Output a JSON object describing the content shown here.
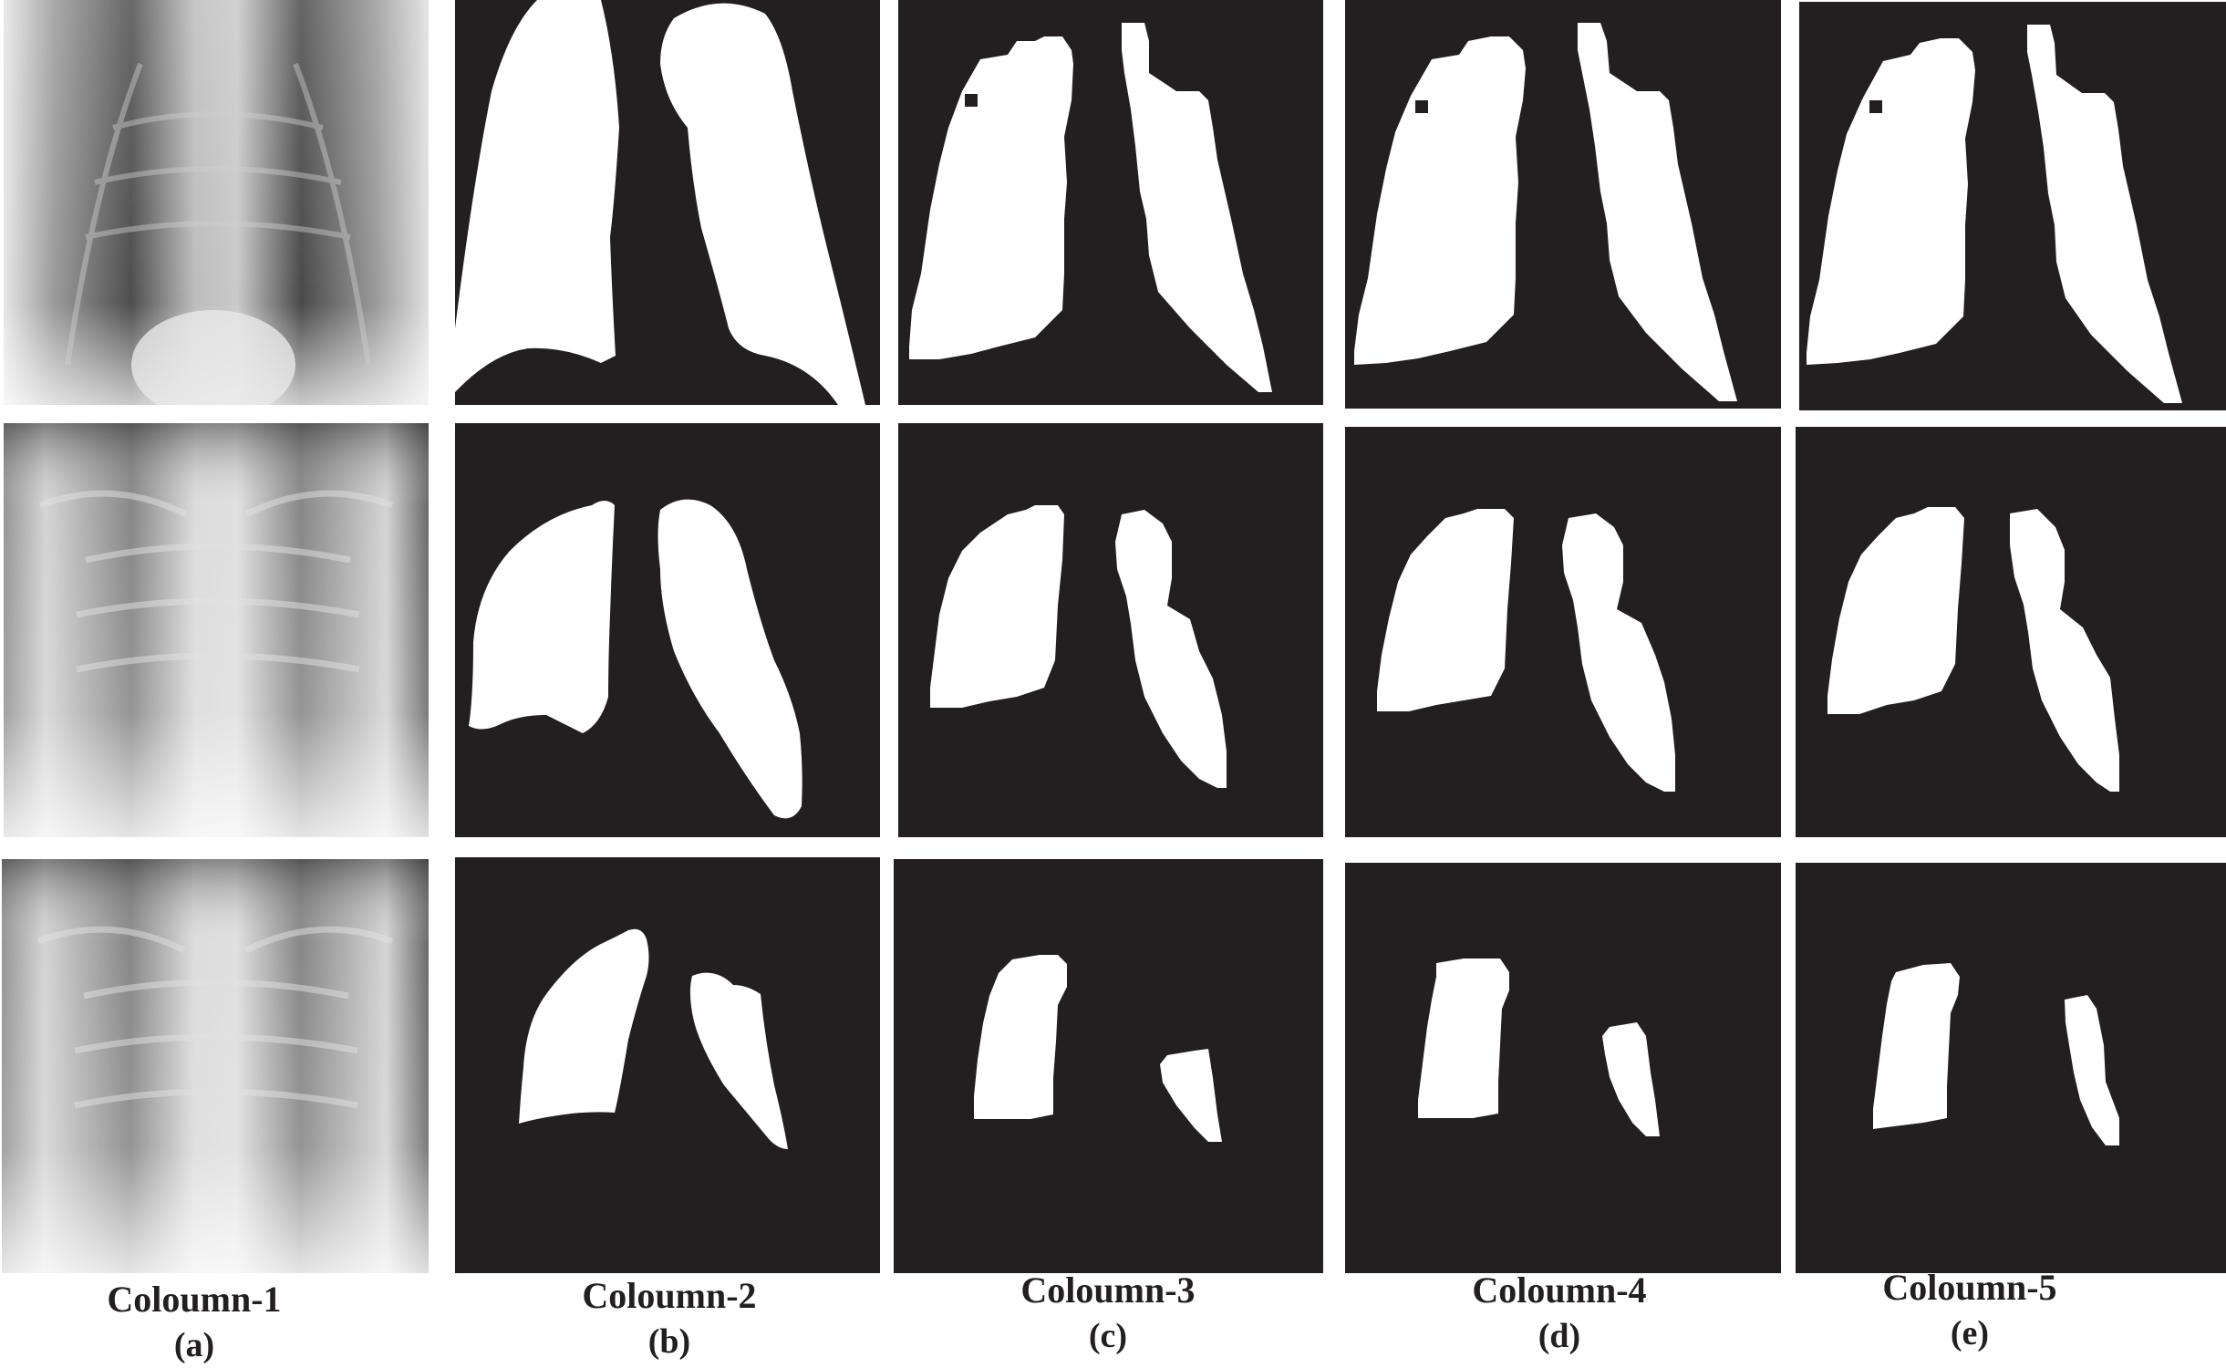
{
  "figure": {
    "panel_background": "#231f20",
    "mask_color": "#ffffff",
    "xray_tone": "#8c8c8c",
    "columns": [
      {
        "title": "Coloumn-1",
        "sublabel": "(a)",
        "content": "chest-x-ray"
      },
      {
        "title": "Coloumn-2",
        "sublabel": "(b)",
        "content": "ground-truth-lung-mask"
      },
      {
        "title": "Coloumn-3",
        "sublabel": "(c)",
        "content": "predicted-lung-mask"
      },
      {
        "title": "Coloumn-4",
        "sublabel": "(d)",
        "content": "predicted-lung-mask"
      },
      {
        "title": "Coloumn-5",
        "sublabel": "(e)",
        "content": "predicted-lung-mask"
      }
    ],
    "rows": 3
  }
}
